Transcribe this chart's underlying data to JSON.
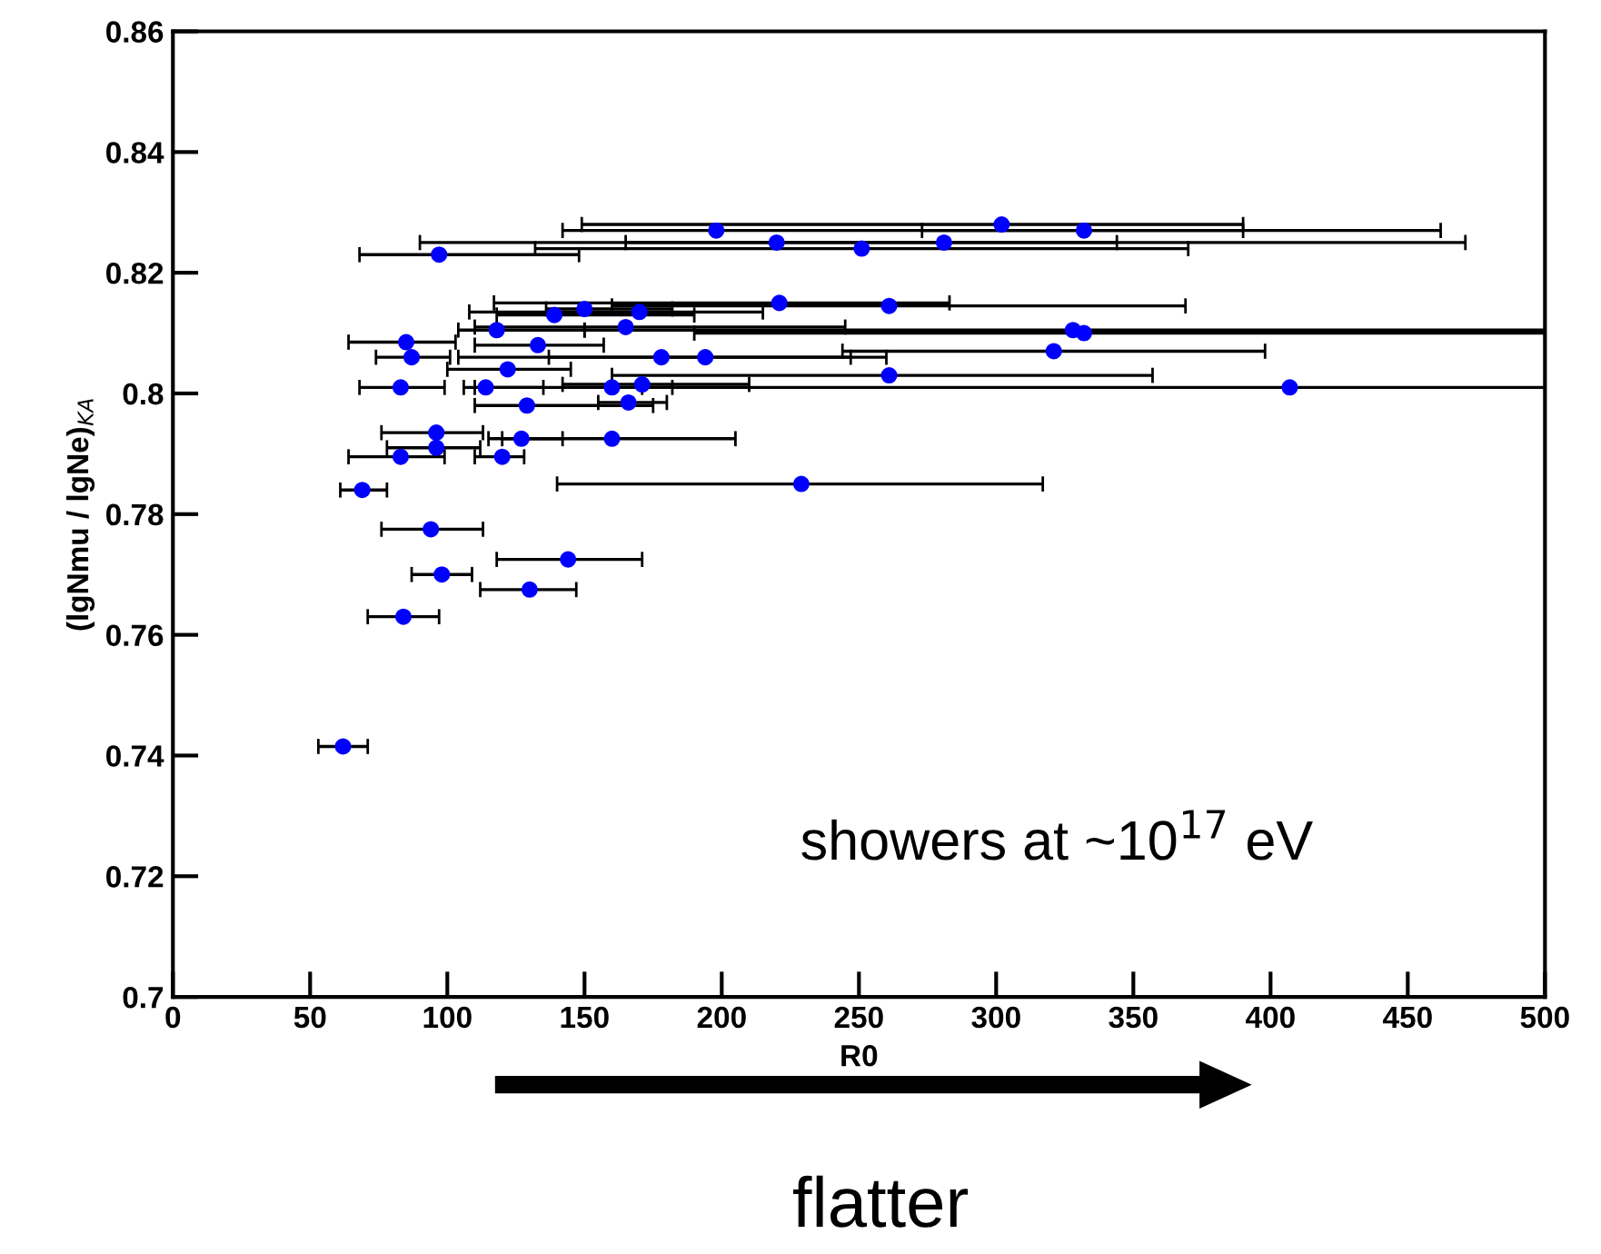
{
  "chart_data": {
    "type": "scatter",
    "xlabel": "R0",
    "ylabel": "(lgNmu / lgNe)$_{KA}$",
    "xlim": [
      0,
      500
    ],
    "ylim": [
      0.7,
      0.86
    ],
    "xticks": [
      0,
      50,
      100,
      150,
      200,
      250,
      300,
      350,
      400,
      450,
      500
    ],
    "yticks": [
      0.7,
      0.72,
      0.74,
      0.76,
      0.78,
      0.8,
      0.82,
      0.84,
      0.86
    ],
    "series": [
      {
        "color": "#0000ff",
        "x": [
          198,
          302,
          332,
          220,
          251,
          281,
          97,
          221,
          261,
          139,
          150,
          170,
          165,
          118,
          328,
          332,
          85,
          133,
          87,
          178,
          194,
          321,
          122,
          261,
          83,
          114,
          160,
          171,
          407,
          129,
          166,
          96,
          96,
          127,
          160,
          83,
          120,
          69,
          229,
          94,
          144,
          98,
          130,
          84,
          62
        ],
        "values": [
          0.827,
          0.828,
          0.827,
          0.825,
          0.824,
          0.825,
          0.823,
          0.815,
          0.8145,
          0.813,
          0.814,
          0.8135,
          0.811,
          0.8105,
          0.8105,
          0.81,
          0.8085,
          0.808,
          0.806,
          0.806,
          0.806,
          0.807,
          0.804,
          0.803,
          0.801,
          0.801,
          0.801,
          0.8015,
          0.801,
          0.798,
          0.7985,
          0.7935,
          0.791,
          0.7925,
          0.7925,
          0.7895,
          0.7895,
          0.784,
          0.785,
          0.7775,
          0.7725,
          0.77,
          0.7675,
          0.763,
          0.7415
        ],
        "xerrors": [
          [
            142,
            462
          ],
          [
            149,
            390
          ],
          [
            273,
            390
          ],
          [
            90,
            344
          ],
          [
            132,
            370
          ],
          [
            165,
            471
          ],
          [
            68,
            148
          ],
          [
            117,
            283
          ],
          [
            160,
            369
          ],
          [
            118,
            190
          ],
          [
            136,
            182
          ],
          [
            108,
            215
          ],
          [
            110,
            245
          ],
          [
            104,
            150
          ],
          [
            150,
            500
          ],
          [
            190,
            500
          ],
          [
            64,
            103
          ],
          [
            110,
            157
          ],
          [
            74,
            101
          ],
          [
            137,
            260
          ],
          [
            104,
            247
          ],
          [
            244,
            398
          ],
          [
            100,
            145
          ],
          [
            160,
            357
          ],
          [
            68,
            99
          ],
          [
            106,
            135
          ],
          [
            110,
            182
          ],
          [
            142,
            210
          ],
          [
            171,
            500
          ],
          [
            110,
            175
          ],
          [
            155,
            180
          ],
          [
            76,
            113
          ],
          [
            78,
            112
          ],
          [
            115,
            142
          ],
          [
            120,
            205
          ],
          [
            64,
            99
          ],
          [
            110,
            128
          ],
          [
            61,
            78
          ],
          [
            140,
            317
          ],
          [
            76,
            113
          ],
          [
            118,
            171
          ],
          [
            87,
            109
          ],
          [
            112,
            147
          ],
          [
            71,
            97
          ],
          [
            53,
            71
          ]
        ]
      }
    ],
    "marker": "circle",
    "grid": false,
    "annotations": [
      "showers at ~10$^{17}$ eV",
      "flatter"
    ]
  }
}
